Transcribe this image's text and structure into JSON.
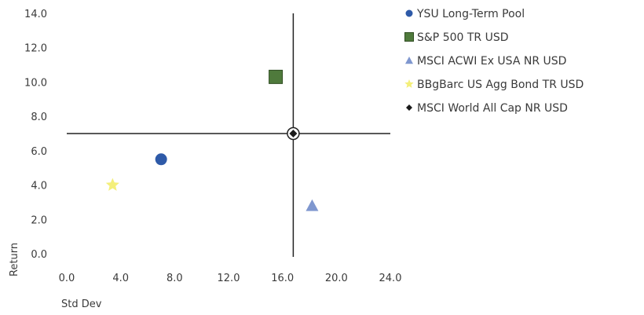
{
  "chart_data": {
    "type": "scatter",
    "title": "",
    "xlabel": "Std Dev",
    "ylabel": "Return",
    "xlim": [
      0,
      24
    ],
    "ylim": [
      0,
      14
    ],
    "x_ticks": [
      "0.0",
      "4.0",
      "8.0",
      "12.0",
      "16.0",
      "20.0",
      "24.0"
    ],
    "y_ticks": [
      "0.0",
      "2.0",
      "4.0",
      "6.0",
      "8.0",
      "10.0",
      "12.0",
      "14.0"
    ],
    "crosshair": {
      "x": 16.8,
      "y": 7.0
    },
    "grid": false,
    "legend_position": "right",
    "series": [
      {
        "name": "YSU Long-Term Pool",
        "marker": "circle",
        "color": "#2e5aa8",
        "x": 7.0,
        "y": 5.5
      },
      {
        "name": "S&P 500 TR USD",
        "marker": "square",
        "color": "#4f7a3c",
        "x": 15.5,
        "y": 10.3
      },
      {
        "name": "MSCI ACWI Ex USA NR USD",
        "marker": "triangle",
        "color": "#7f97cf",
        "x": 18.2,
        "y": 2.8
      },
      {
        "name": "BBgBarc US Agg Bond TR USD",
        "marker": "star",
        "color": "#f4ef7a",
        "x": 3.4,
        "y": 4.0
      },
      {
        "name": "MSCI World All Cap NR USD",
        "marker": "diamond",
        "color": "#1a1a1a",
        "x": 16.8,
        "y": 7.0
      }
    ]
  }
}
